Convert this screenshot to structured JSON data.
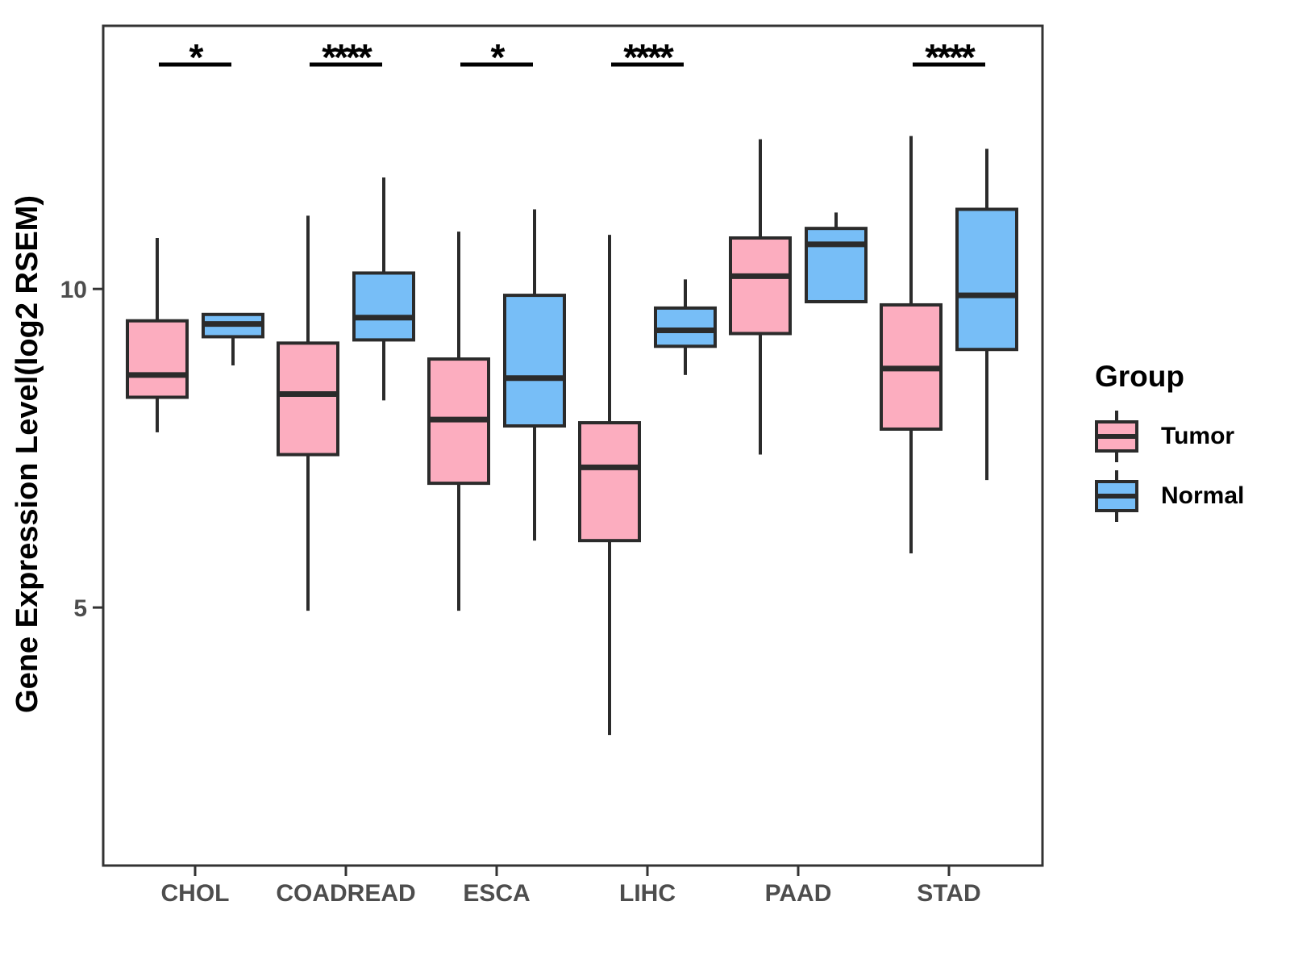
{
  "chart_data": {
    "type": "boxplot",
    "title": "",
    "xlabel": "",
    "ylabel": "Gene Expression Level(log2 RSEM)",
    "categories": [
      "CHOL",
      "COADREAD",
      "ESCA",
      "LIHC",
      "PAAD",
      "STAD"
    ],
    "groups": [
      "Tumor",
      "Normal"
    ],
    "ylim": [
      0.95,
      14.13
    ],
    "yticks": [
      5,
      10
    ],
    "grid": "off",
    "legend_position": "right",
    "series": [
      {
        "name": "Tumor",
        "color": "#FCADBF",
        "boxes": [
          {
            "category": "CHOL",
            "min": 7.75,
            "q1": 8.3,
            "median": 8.65,
            "q3": 9.5,
            "max": 10.8
          },
          {
            "category": "COADREAD",
            "min": 4.95,
            "q1": 7.4,
            "median": 8.35,
            "q3": 9.15,
            "max": 11.15
          },
          {
            "category": "ESCA",
            "min": 4.95,
            "q1": 6.95,
            "median": 7.95,
            "q3": 8.9,
            "max": 10.9
          },
          {
            "category": "LIHC",
            "min": 3.0,
            "q1": 6.05,
            "median": 7.2,
            "q3": 7.9,
            "max": 10.85
          },
          {
            "category": "PAAD",
            "min": 7.4,
            "q1": 9.3,
            "median": 10.2,
            "q3": 10.8,
            "max": 12.35
          },
          {
            "category": "STAD",
            "min": 5.85,
            "q1": 7.8,
            "median": 8.75,
            "q3": 9.75,
            "max": 12.4
          }
        ]
      },
      {
        "name": "Normal",
        "color": "#77BEF7",
        "boxes": [
          {
            "category": "CHOL",
            "min": 8.8,
            "q1": 9.25,
            "median": 9.45,
            "q3": 9.6,
            "max": 9.6
          },
          {
            "category": "COADREAD",
            "min": 8.25,
            "q1": 9.2,
            "median": 9.55,
            "q3": 10.25,
            "max": 11.75
          },
          {
            "category": "ESCA",
            "min": 6.05,
            "q1": 7.85,
            "median": 8.6,
            "q3": 9.9,
            "max": 11.25
          },
          {
            "category": "LIHC",
            "min": 8.65,
            "q1": 9.1,
            "median": 9.35,
            "q3": 9.7,
            "max": 10.15
          },
          {
            "category": "PAAD",
            "min": 9.8,
            "q1": 9.8,
            "median": 10.7,
            "q3": 10.95,
            "max": 11.2
          },
          {
            "category": "STAD",
            "min": 7.0,
            "q1": 9.05,
            "median": 9.9,
            "q3": 11.25,
            "max": 12.2
          }
        ]
      }
    ],
    "significance": [
      {
        "category": "CHOL",
        "label": "*"
      },
      {
        "category": "COADREAD",
        "label": "****"
      },
      {
        "category": "ESCA",
        "label": "*"
      },
      {
        "category": "LIHC",
        "label": "****"
      },
      {
        "category": "STAD",
        "label": "****"
      }
    ],
    "legend": {
      "title": "Group",
      "entries": [
        {
          "label": "Tumor",
          "color": "#FCADBF"
        },
        {
          "label": "Normal",
          "color": "#77BEF7"
        }
      ]
    },
    "style": {
      "box_border_color": "#2b2b2b",
      "panel_border_color": "#333333",
      "annotation_color": "#000000"
    }
  }
}
